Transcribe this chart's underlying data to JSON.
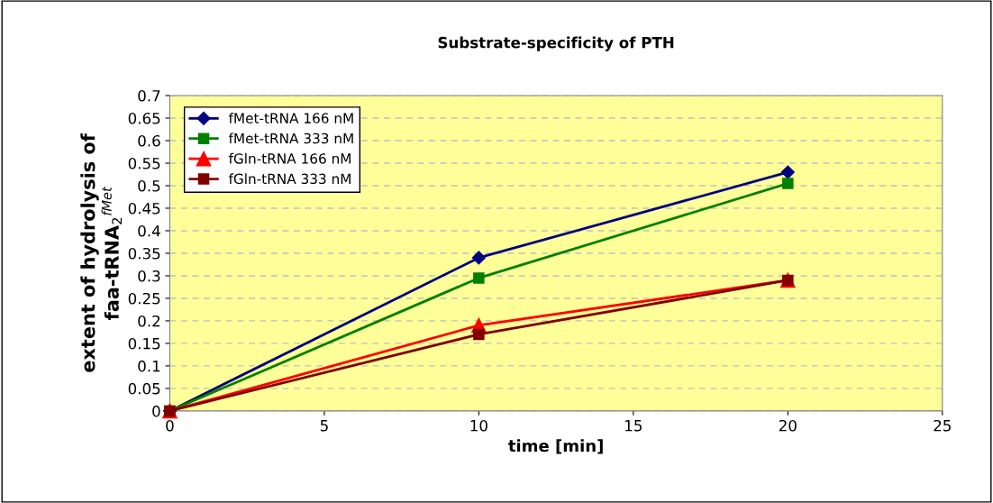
{
  "chart_data": {
    "type": "line",
    "title": "Substrate-specificity of PTH",
    "xlabel": "time [min]",
    "ylabel": "extent of hydrolysis of\nfaa-tRNA$_{2}$$^{fMet}$",
    "x": [
      0,
      10,
      20
    ],
    "series": [
      {
        "name": "fMet-tRNA 166 nM",
        "color": "#000080",
        "marker": "diamond",
        "values": [
          0,
          0.34,
          0.53
        ]
      },
      {
        "name": "fMet-tRNA 333 nM",
        "color": "#008000",
        "marker": "square",
        "values": [
          0,
          0.295,
          0.505
        ]
      },
      {
        "name": "fGln-tRNA 166 nM",
        "color": "#ff0000",
        "marker": "triangle",
        "values": [
          0,
          0.19,
          0.29
        ]
      },
      {
        "name": "fGln-tRNA 333 nM",
        "color": "#800000",
        "marker": "square",
        "values": [
          0,
          0.17,
          0.29
        ]
      }
    ],
    "xlim": [
      0,
      25
    ],
    "xticks": [
      0,
      5,
      10,
      15,
      20,
      25
    ],
    "ylim": [
      0,
      0.7
    ],
    "yticks": [
      0,
      0.05,
      0.1,
      0.15,
      0.2,
      0.25,
      0.3,
      0.35,
      0.4,
      0.45,
      0.5,
      0.55,
      0.6,
      0.65,
      0.7
    ],
    "grid": "y",
    "legend": "top left",
    "line_style": "solid"
  }
}
